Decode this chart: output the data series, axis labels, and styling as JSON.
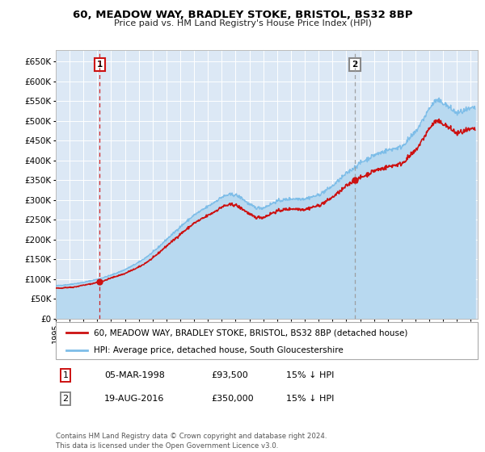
{
  "title": "60, MEADOW WAY, BRADLEY STOKE, BRISTOL, BS32 8BP",
  "subtitle": "Price paid vs. HM Land Registry's House Price Index (HPI)",
  "xlim_start": 1995.0,
  "xlim_end": 2025.5,
  "ylim_min": 0,
  "ylim_max": 680000,
  "purchase1_date": 1998.17,
  "purchase1_price": 93500,
  "purchase1_label": "1",
  "purchase2_date": 2016.63,
  "purchase2_price": 350000,
  "purchase2_label": "2",
  "legend_line1": "60, MEADOW WAY, BRADLEY STOKE, BRISTOL, BS32 8BP (detached house)",
  "legend_line2": "HPI: Average price, detached house, South Gloucestershire",
  "table_row1": [
    "1",
    "05-MAR-1998",
    "£93,500",
    "15% ↓ HPI"
  ],
  "table_row2": [
    "2",
    "19-AUG-2016",
    "£350,000",
    "15% ↓ HPI"
  ],
  "footer": "Contains HM Land Registry data © Crown copyright and database right 2024.\nThis data is licensed under the Open Government Licence v3.0.",
  "hpi_color": "#7dbde8",
  "hpi_fill_color": "#b8d9f0",
  "price_color": "#cc1111",
  "dashed_line1_color": "#cc1111",
  "dashed_line2_color": "#999999",
  "bg_color": "#dce8f5",
  "grid_color": "#ffffff",
  "box1_color": "#cc1111",
  "box2_color": "#888888"
}
